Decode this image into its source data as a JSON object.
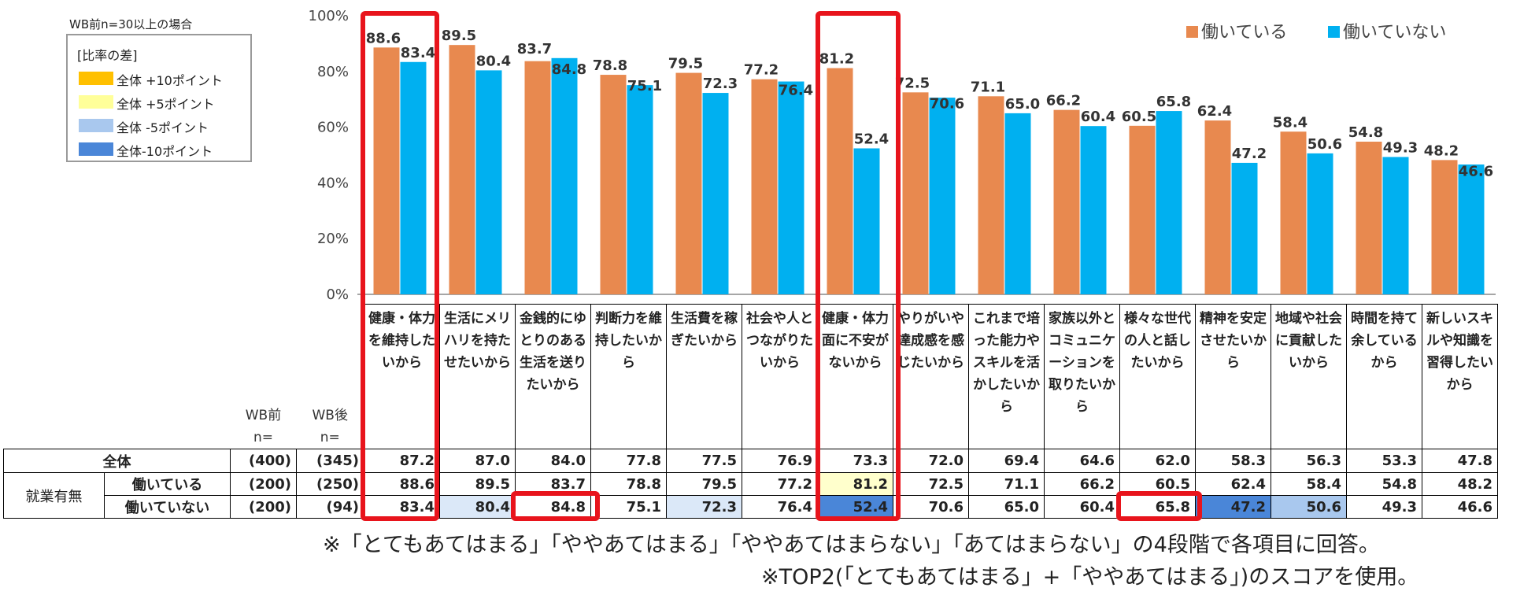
{
  "note": "WB前n=30以上の場合",
  "legend_box": {
    "title": "[比率の差]",
    "items": [
      {
        "label": "全体 +10ポイント",
        "color": "#ffc000"
      },
      {
        "label": "全体 +5ポイント",
        "color": "#ffff99"
      },
      {
        "label": "全体 -5ポイント",
        "color": "#a9c8ee"
      },
      {
        "label": "全体-10ポイント",
        "color": "#4a86d8"
      }
    ]
  },
  "chart_data": {
    "type": "bar",
    "categories": [
      "健康・体力を維持したいから",
      "生活にメリハリを持たせたいから",
      "金銭的にゆとりのある生活を送りたいから",
      "判断力を維持したいから",
      "生活費を稼ぎたいから",
      "社会や人とつながりたいから",
      "健康・体力面に不安がないから",
      "やりがいや達成感を感じたいから",
      "これまで培った能力やスキルを活かしたいから",
      "家族以外とコミュニケーションを取りたいから",
      "様々な世代の人と話したいから",
      "精神を安定させたいから",
      "地域や社会に貢献したいから",
      "時間を持て余しているから",
      "新しいスキルや知識を習得したいから"
    ],
    "series": [
      {
        "name": "働いている",
        "color": "#e8894f",
        "values": [
          88.6,
          89.5,
          83.7,
          78.8,
          79.5,
          77.2,
          81.2,
          72.5,
          71.1,
          66.2,
          60.5,
          62.4,
          58.4,
          54.8,
          48.2
        ]
      },
      {
        "name": "働いていない",
        "color": "#00b0f0",
        "values": [
          83.4,
          80.4,
          84.8,
          75.1,
          72.3,
          76.4,
          52.4,
          70.6,
          65.0,
          60.4,
          65.8,
          47.2,
          50.6,
          49.3,
          46.6
        ]
      }
    ],
    "yticks": [
      "0%",
      "20%",
      "40%",
      "60%",
      "80%",
      "100%"
    ],
    "ylim": [
      0,
      100
    ],
    "legend_position": "top-right",
    "grid": false
  },
  "table": {
    "hdr_wb_before": "WB前",
    "hdr_wb_after": "WB後",
    "hdr_n": "n=",
    "group_label": "就業有無",
    "rows": [
      {
        "label": "全体",
        "n_before": "(400)",
        "n_after": "(345)",
        "values": [
          "87.2",
          "87.0",
          "84.0",
          "77.8",
          "77.5",
          "76.9",
          "73.3",
          "72.0",
          "69.4",
          "64.6",
          "62.0",
          "58.3",
          "56.3",
          "53.3",
          "47.8"
        ],
        "fills": [
          "",
          "",
          "",
          "",
          "",
          "",
          "",
          "",
          "",
          "",
          "",
          "",
          "",
          "",
          ""
        ]
      },
      {
        "label": "働いている",
        "n_before": "(200)",
        "n_after": "(250)",
        "values": [
          "88.6",
          "89.5",
          "83.7",
          "78.8",
          "79.5",
          "77.2",
          "81.2",
          "72.5",
          "71.1",
          "66.2",
          "60.5",
          "62.4",
          "58.4",
          "54.8",
          "48.2"
        ],
        "fills": [
          "",
          "",
          "",
          "",
          "",
          "",
          "#ffffcc",
          "",
          "",
          "",
          "",
          "",
          "",
          "",
          ""
        ]
      },
      {
        "label": "働いていない",
        "n_before": "(200)",
        "n_after": "(94)",
        "values": [
          "83.4",
          "80.4",
          "84.8",
          "75.1",
          "72.3",
          "76.4",
          "52.4",
          "70.6",
          "65.0",
          "60.4",
          "65.8",
          "47.2",
          "50.6",
          "49.3",
          "46.6"
        ],
        "fills": [
          "",
          "#dbe8f8",
          "",
          "",
          "#dbe8f8",
          "",
          "#4a86d8",
          "",
          "",
          "",
          "",
          "#4a86d8",
          "#a9c8ee",
          "",
          ""
        ]
      }
    ]
  },
  "footnotes": [
    "※「とてもあてはまる」「ややあてはまる」「ややあてはまらない」「あてはまらない」の4段階で各項目に回答。",
    "※TOP2(「とてもあてはまる」+「ややあてはまる」)のスコアを使用。"
  ],
  "highlight_color": "#e8141c"
}
